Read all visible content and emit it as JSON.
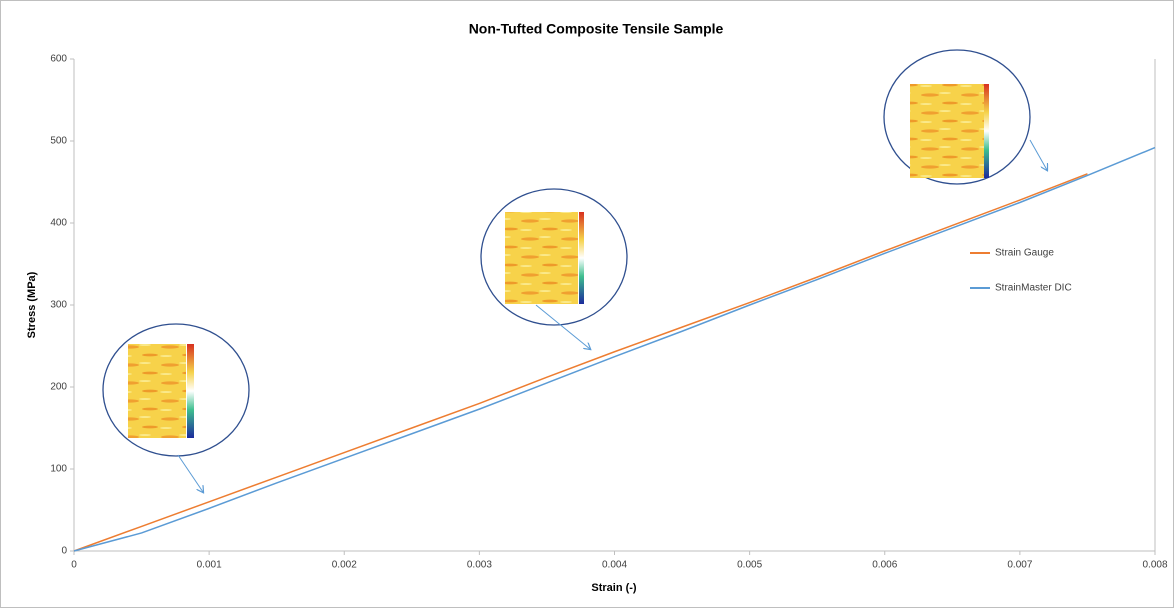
{
  "chart_data": {
    "type": "line",
    "title": "Non-Tufted Composite Tensile  Sample",
    "x_label": "Strain (-)",
    "y_label": "Stress (MPa)",
    "x": [
      0,
      0.0005,
      0.001,
      0.0015,
      0.002,
      0.0025,
      0.003,
      0.0035,
      0.004,
      0.0045,
      0.005,
      0.0055,
      0.006,
      0.0065,
      0.007,
      0.0075,
      0.008
    ],
    "series": [
      {
        "name": "Strain Gauge",
        "color": "#ed7d31",
        "values": [
          0,
          30,
          60,
          90,
          120,
          150,
          180,
          212,
          243,
          273,
          303,
          334,
          366,
          397,
          428,
          460,
          null
        ]
      },
      {
        "name": "StrainMaster DIC",
        "color": "#5b9bd5",
        "values": [
          0,
          22,
          52,
          83,
          113,
          143,
          173,
          205,
          237,
          268,
          300,
          331,
          363,
          394,
          425,
          458,
          492
        ]
      }
    ],
    "xlim": [
      0,
      0.008
    ],
    "xticks": [
      0,
      0.001,
      0.002,
      0.003,
      0.004,
      0.005,
      0.006,
      0.007,
      0.008
    ],
    "ylim": [
      0,
      600
    ],
    "yticks": [
      0,
      100,
      200,
      300,
      400,
      500,
      600
    ],
    "grid": false,
    "legend": "right"
  }
}
